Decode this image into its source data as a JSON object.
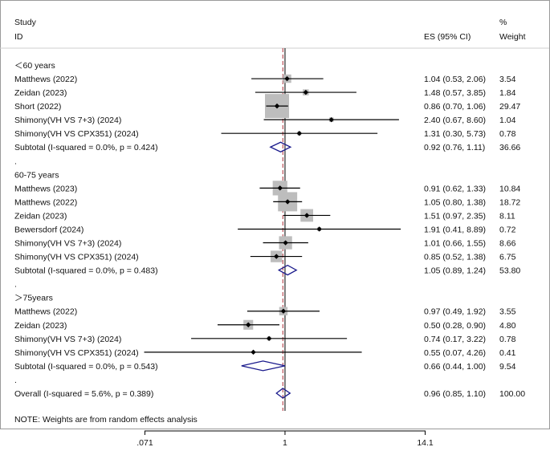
{
  "chart_data": {
    "type": "forest",
    "headers": {
      "study": "Study",
      "id": "ID",
      "es": "ES (95% CI)",
      "pct": "%",
      "weight": "Weight"
    },
    "x_scale": "log",
    "xlim": [
      0.0705,
      14.2
    ],
    "null_line": 1,
    "overall_effect": 0.96,
    "ticks": [
      {
        "value": 0.071,
        "label": ".071"
      },
      {
        "value": 1,
        "label": "1"
      },
      {
        "value": 14.1,
        "label": "14.1"
      }
    ],
    "rows": [
      {
        "kind": "group",
        "label": "＜60 years"
      },
      {
        "kind": "study",
        "label": "Matthews (2022)",
        "es": 1.04,
        "lo": 0.53,
        "hi": 2.06,
        "es_text": "1.04 (0.53, 2.06)",
        "weight": 3.54,
        "weight_text": "3.54"
      },
      {
        "kind": "study",
        "label": "Zeidan (2023)",
        "es": 1.48,
        "lo": 0.57,
        "hi": 3.85,
        "es_text": "1.48 (0.57, 3.85)",
        "weight": 1.84,
        "weight_text": "1.84"
      },
      {
        "kind": "study",
        "label": "Short (2022)",
        "es": 0.86,
        "lo": 0.7,
        "hi": 1.06,
        "es_text": "0.86 (0.70, 1.06)",
        "weight": 29.47,
        "weight_text": "29.47"
      },
      {
        "kind": "study",
        "label": "Shimony(VH VS 7+3) (2024)",
        "es": 2.4,
        "lo": 0.67,
        "hi": 8.6,
        "es_text": "2.40 (0.67, 8.60)",
        "weight": 1.04,
        "weight_text": "1.04"
      },
      {
        "kind": "study",
        "label": "Shimony(VH VS CPX351) (2024)",
        "es": 1.31,
        "lo": 0.3,
        "hi": 5.73,
        "es_text": "1.31 (0.30, 5.73)",
        "weight": 0.78,
        "weight_text": "0.78"
      },
      {
        "kind": "subtotal",
        "label": "Subtotal  (I-squared = 0.0%, p = 0.424)",
        "es": 0.92,
        "lo": 0.76,
        "hi": 1.11,
        "es_text": "0.92 (0.76, 1.11)",
        "weight": 36.66,
        "weight_text": "36.66"
      },
      {
        "kind": "dot",
        "label": "."
      },
      {
        "kind": "group",
        "label": "60-75 years"
      },
      {
        "kind": "study",
        "label": "Matthews (2023)",
        "es": 0.91,
        "lo": 0.62,
        "hi": 1.33,
        "es_text": "0.91 (0.62, 1.33)",
        "weight": 10.84,
        "weight_text": "10.84"
      },
      {
        "kind": "study",
        "label": "Matthews (2022)",
        "es": 1.05,
        "lo": 0.8,
        "hi": 1.38,
        "es_text": "1.05 (0.80, 1.38)",
        "weight": 18.72,
        "weight_text": "18.72"
      },
      {
        "kind": "study",
        "label": "Zeidan (2023)",
        "es": 1.51,
        "lo": 0.97,
        "hi": 2.35,
        "es_text": "1.51 (0.97, 2.35)",
        "weight": 8.11,
        "weight_text": "8.11"
      },
      {
        "kind": "study",
        "label": "Bewersdorf (2024)",
        "es": 1.91,
        "lo": 0.41,
        "hi": 8.89,
        "es_text": "1.91 (0.41, 8.89)",
        "weight": 0.72,
        "weight_text": "0.72"
      },
      {
        "kind": "study",
        "label": "Shimony(VH VS 7+3) (2024)",
        "es": 1.01,
        "lo": 0.66,
        "hi": 1.55,
        "es_text": "1.01 (0.66, 1.55)",
        "weight": 8.66,
        "weight_text": "8.66"
      },
      {
        "kind": "study",
        "label": "Shimony(VH VS CPX351) (2024)",
        "es": 0.85,
        "lo": 0.52,
        "hi": 1.38,
        "es_text": "0.85 (0.52, 1.38)",
        "weight": 6.75,
        "weight_text": "6.75"
      },
      {
        "kind": "subtotal",
        "label": "Subtotal  (I-squared = 0.0%, p = 0.483)",
        "es": 1.05,
        "lo": 0.89,
        "hi": 1.24,
        "es_text": "1.05 (0.89, 1.24)",
        "weight": 53.8,
        "weight_text": "53.80"
      },
      {
        "kind": "dot",
        "label": "."
      },
      {
        "kind": "group",
        "label": "＞75years"
      },
      {
        "kind": "study",
        "label": "Matthews (2022)",
        "es": 0.97,
        "lo": 0.49,
        "hi": 1.92,
        "es_text": "0.97 (0.49, 1.92)",
        "weight": 3.55,
        "weight_text": "3.55"
      },
      {
        "kind": "study",
        "label": "Zeidan (2023)",
        "es": 0.5,
        "lo": 0.28,
        "hi": 0.9,
        "es_text": "0.50 (0.28, 0.90)",
        "weight": 4.8,
        "weight_text": "4.80"
      },
      {
        "kind": "study",
        "label": "Shimony(VH VS 7+3) (2024)",
        "es": 0.74,
        "lo": 0.17,
        "hi": 3.22,
        "es_text": "0.74 (0.17, 3.22)",
        "weight": 0.78,
        "weight_text": "0.78"
      },
      {
        "kind": "study",
        "label": "Shimony(VH VS CPX351) (2024)",
        "es": 0.55,
        "lo": 0.07,
        "hi": 4.26,
        "es_text": "0.55 (0.07, 4.26)",
        "weight": 0.41,
        "weight_text": "0.41"
      },
      {
        "kind": "subtotal",
        "label": "Subtotal  (I-squared = 0.0%, p = 0.543)",
        "es": 0.66,
        "lo": 0.44,
        "hi": 1.0,
        "es_text": "0.66 (0.44, 1.00)",
        "weight": 9.54,
        "weight_text": "9.54"
      },
      {
        "kind": "dot",
        "label": "."
      },
      {
        "kind": "overall",
        "label": "Overall  (I-squared = 5.6%, p = 0.389)",
        "es": 0.96,
        "lo": 0.85,
        "hi": 1.1,
        "es_text": "0.96 (0.85, 1.10)",
        "weight": 100.0,
        "weight_text": "100.00"
      }
    ],
    "note": "NOTE: Weights are from random effects analysis",
    "colors": {
      "box": "#bdbdbd",
      "diamond": "#1a1a8c",
      "null_line": "#000000",
      "overall_line": "#b0303a",
      "axis": "#000000"
    }
  }
}
